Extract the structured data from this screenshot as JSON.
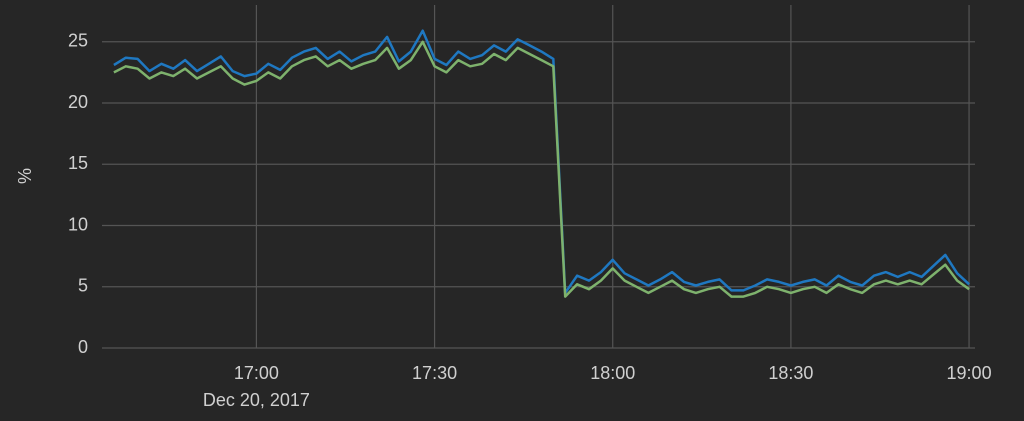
{
  "chart_data": {
    "type": "line",
    "y_label": "%",
    "date_label": "Dec 20, 2017",
    "x": [
      "16:36",
      "16:38",
      "16:40",
      "16:42",
      "16:44",
      "16:46",
      "16:48",
      "16:50",
      "16:52",
      "16:54",
      "16:56",
      "16:58",
      "17:00",
      "17:02",
      "17:04",
      "17:06",
      "17:08",
      "17:10",
      "17:12",
      "17:14",
      "17:16",
      "17:18",
      "17:20",
      "17:22",
      "17:24",
      "17:26",
      "17:28",
      "17:30",
      "17:32",
      "17:34",
      "17:36",
      "17:38",
      "17:40",
      "17:42",
      "17:44",
      "17:46",
      "17:48",
      "17:50",
      "17:52",
      "17:54",
      "17:56",
      "17:58",
      "18:00",
      "18:02",
      "18:04",
      "18:06",
      "18:08",
      "18:10",
      "18:12",
      "18:14",
      "18:16",
      "18:18",
      "18:20",
      "18:22",
      "18:24",
      "18:26",
      "18:28",
      "18:30",
      "18:32",
      "18:34",
      "18:36",
      "18:38",
      "18:40",
      "18:42",
      "18:44",
      "18:46",
      "18:48",
      "18:50",
      "18:52",
      "18:54",
      "18:56",
      "18:58",
      "19:00"
    ],
    "series": [
      {
        "color": "#1f78c1",
        "values": [
          23.1,
          23.7,
          23.6,
          22.6,
          23.2,
          22.8,
          23.5,
          22.6,
          23.2,
          23.8,
          22.6,
          22.2,
          22.4,
          23.2,
          22.7,
          23.7,
          24.2,
          24.5,
          23.6,
          24.2,
          23.4,
          23.9,
          24.2,
          25.4,
          23.4,
          24.2,
          25.9,
          23.6,
          23.1,
          24.2,
          23.6,
          23.9,
          24.7,
          24.2,
          25.2,
          24.7,
          24.2,
          23.6,
          4.5,
          5.9,
          5.5,
          6.2,
          7.2,
          6.1,
          5.6,
          5.1,
          5.6,
          6.2,
          5.4,
          5.1,
          5.4,
          5.6,
          4.7,
          4.7,
          5.1,
          5.6,
          5.4,
          5.1,
          5.4,
          5.6,
          5.1,
          5.9,
          5.4,
          5.1,
          5.9,
          6.2,
          5.8,
          6.2,
          5.8,
          6.7,
          7.6,
          6.1,
          5.2
        ]
      },
      {
        "color": "#7eb26d",
        "values": [
          22.5,
          23,
          22.8,
          22,
          22.5,
          22.2,
          22.8,
          22,
          22.5,
          23,
          22,
          21.5,
          21.8,
          22.5,
          22,
          23,
          23.5,
          23.8,
          23,
          23.5,
          22.8,
          23.2,
          23.5,
          24.5,
          22.8,
          23.5,
          25,
          23,
          22.5,
          23.5,
          23,
          23.2,
          24,
          23.5,
          24.5,
          24,
          23.5,
          23,
          4.2,
          5.2,
          4.8,
          5.5,
          6.5,
          5.5,
          5,
          4.5,
          5,
          5.5,
          4.8,
          4.5,
          4.8,
          5,
          4.2,
          4.2,
          4.5,
          5,
          4.8,
          4.5,
          4.8,
          5,
          4.5,
          5.2,
          4.8,
          4.5,
          5.2,
          5.5,
          5.2,
          5.5,
          5.2,
          6,
          6.8,
          5.5,
          4.8
        ]
      }
    ],
    "xlim": [
      "16:34",
      "19:01"
    ],
    "xticks": [
      "17:00",
      "17:30",
      "18:00",
      "18:30",
      "19:00"
    ],
    "ylim": [
      0,
      28
    ],
    "yticks": [
      0,
      5,
      10,
      15,
      20,
      25
    ],
    "grid": true
  }
}
